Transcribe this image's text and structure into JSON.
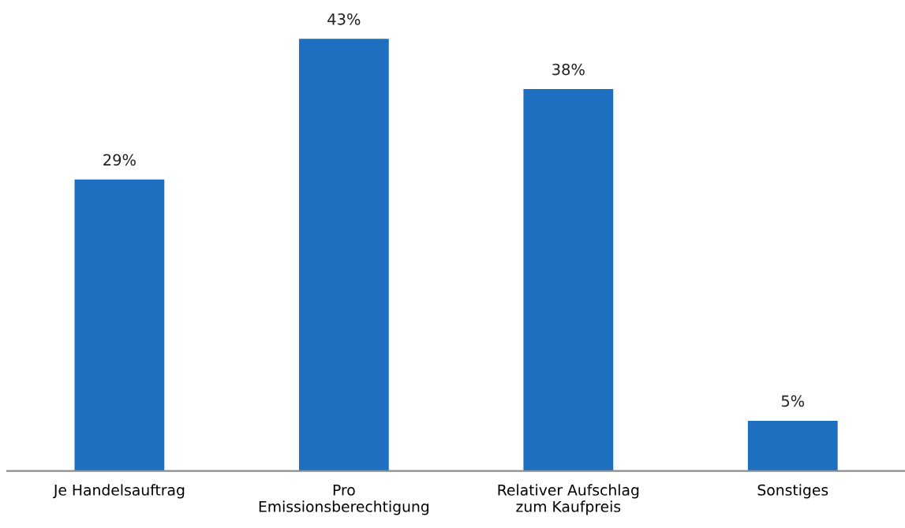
{
  "chart_data": {
    "type": "bar",
    "categories": [
      "Je Handelsauftrag",
      "Pro\nEmissionsberechtigung",
      "Relativer Aufschlag\nzum Kaufpreis",
      "Sonstiges"
    ],
    "values": [
      29,
      43,
      38,
      5
    ],
    "value_labels": [
      "29%",
      "43%",
      "38%",
      "5%"
    ],
    "color": "#1f6fc1",
    "grid": false,
    "legend": false
  }
}
